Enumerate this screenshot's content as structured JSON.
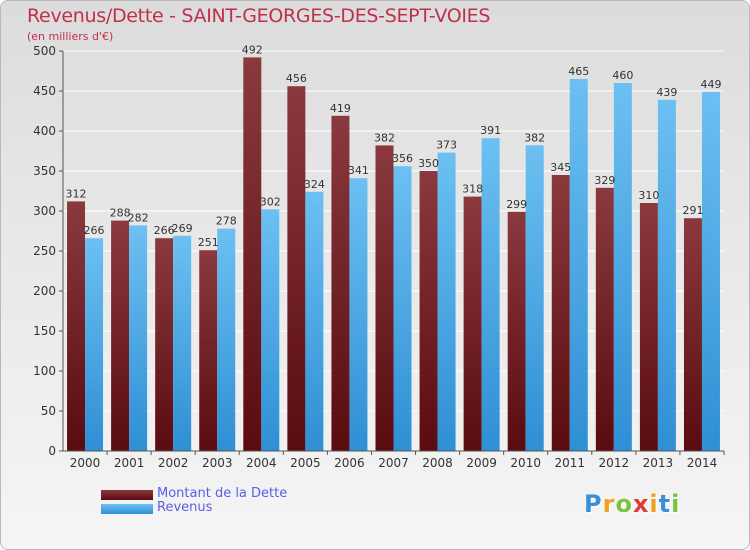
{
  "chart_data": {
    "type": "bar",
    "title": "Revenus/Dette - SAINT-GEORGES-DES-SEPT-VOIES",
    "subtitle": "(en milliers d'€)",
    "xlabel": "",
    "ylabel": "",
    "ylim": [
      0,
      500
    ],
    "y_ticks": [
      "0",
      "50",
      "100",
      "150",
      "200",
      "250",
      "300",
      "350",
      "400",
      "450",
      "500"
    ],
    "categories": [
      "2000",
      "2001",
      "2002",
      "2003",
      "2004",
      "2005",
      "2006",
      "2007",
      "2008",
      "2009",
      "2010",
      "2011",
      "2012",
      "2013",
      "2014"
    ],
    "series": [
      {
        "name": "Montant de la Dette",
        "values": [
          312,
          288,
          266,
          251,
          492,
          456,
          419,
          382,
          350,
          318,
          299,
          345,
          329,
          310,
          291
        ],
        "labels": [
          "312",
          "288",
          "266",
          "251",
          "492",
          "456",
          "419",
          "382",
          "350",
          "318",
          "299",
          "345",
          "329",
          "310",
          "291"
        ]
      },
      {
        "name": "Revenus",
        "values": [
          266,
          282,
          269,
          278,
          302,
          324,
          341,
          356,
          373,
          391,
          382,
          465,
          460,
          439,
          449
        ],
        "labels": [
          "266",
          "282",
          "269",
          "278",
          "302",
          "324",
          "341",
          "356",
          "373",
          "391",
          "382",
          "465",
          "460",
          "439",
          "449"
        ]
      }
    ],
    "grid": true,
    "legend": "bottom-left"
  },
  "colors": {
    "dette_top": "#8a3a3e",
    "dette_bottom": "#5a0b10",
    "revenus_top": "#6cc0f2",
    "revenus_bottom": "#2f8fd4",
    "title": "#c0304e",
    "legend_text": "#5c5ce8"
  },
  "logo": {
    "letters": [
      "P",
      "r",
      "o",
      "x",
      "i",
      "t",
      "i"
    ],
    "colors": [
      "#3a8fd8",
      "#f0a020",
      "#7cc242",
      "#e23a3a",
      "#f0a020",
      "#3a8fd8",
      "#7cc242"
    ]
  }
}
